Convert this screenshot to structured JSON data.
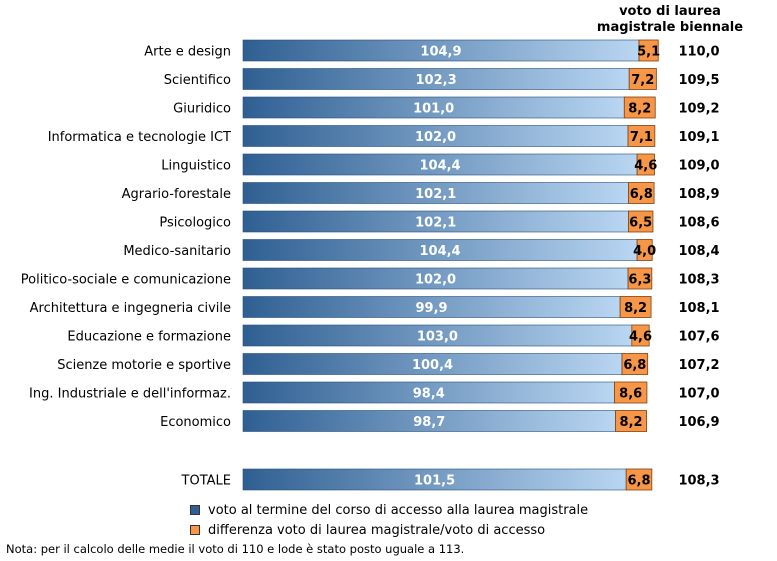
{
  "header": {
    "right_title_line1": "voto di laurea",
    "right_title_line2": "magistrale biennale"
  },
  "legend": {
    "item1": "voto al termine del corso di accesso alla laurea magistrale",
    "item2": "differenza voto di laurea magistrale/voto di accesso"
  },
  "note": "Nota: per il calcolo delle medie il voto di 110 e lode è stato posto uguale a 113.",
  "colors": {
    "access_bar_dark": "#2f5f92",
    "access_bar_light": "#b9d6f2",
    "diff_bar": "#f79646",
    "diff_bar_border": "#7f3f10"
  },
  "chart_data": {
    "type": "bar",
    "orientation": "horizontal",
    "stacked": true,
    "categories": [
      "Arte e design",
      "Scientifico",
      "Giuridico",
      "Informatica e tecnologie ICT",
      "Linguistico",
      "Agrario-forestale",
      "Psicologico",
      "Medico-sanitario",
      "Politico-sociale e comunicazione",
      "Architettura e ingegneria civile",
      "Educazione e formazione",
      "Scienze motorie e sportive",
      "Ing. Industriale e dell'informaz.",
      "Economico"
    ],
    "series": [
      {
        "name": "voto al termine del corso di accesso alla laurea magistrale",
        "values": [
          104.9,
          102.3,
          101.0,
          102.0,
          104.4,
          102.1,
          102.1,
          104.4,
          102.0,
          99.9,
          103.0,
          100.4,
          98.4,
          98.7
        ],
        "labels": [
          "104,9",
          "102,3",
          "101,0",
          "102,0",
          "104,4",
          "102,1",
          "102,1",
          "104,4",
          "102,0",
          "99,9",
          "103,0",
          "100,4",
          "98,4",
          "98,7"
        ]
      },
      {
        "name": "differenza voto di laurea magistrale/voto di accesso",
        "values": [
          5.1,
          7.2,
          8.2,
          7.1,
          4.6,
          6.8,
          6.5,
          4.0,
          6.3,
          8.2,
          4.6,
          6.8,
          8.6,
          8.2
        ],
        "labels": [
          "5,1",
          "7,2",
          "8,2",
          "7,1",
          "4,6",
          "6,8",
          "6,5",
          "4,0",
          "6,3",
          "8,2",
          "4,6",
          "6,8",
          "8,6",
          "8,2"
        ]
      }
    ],
    "totals_right": [
      "110,0",
      "109,5",
      "109,2",
      "109,1",
      "109,0",
      "108,9",
      "108,6",
      "108,4",
      "108,3",
      "108,1",
      "107,6",
      "107,2",
      "107,0",
      "106,9"
    ],
    "total_row": {
      "label": "TOTALE",
      "access_value": 101.5,
      "access_label": "101,5",
      "diff_value": 6.8,
      "diff_label": "6,8",
      "final_label": "108,3"
    }
  }
}
